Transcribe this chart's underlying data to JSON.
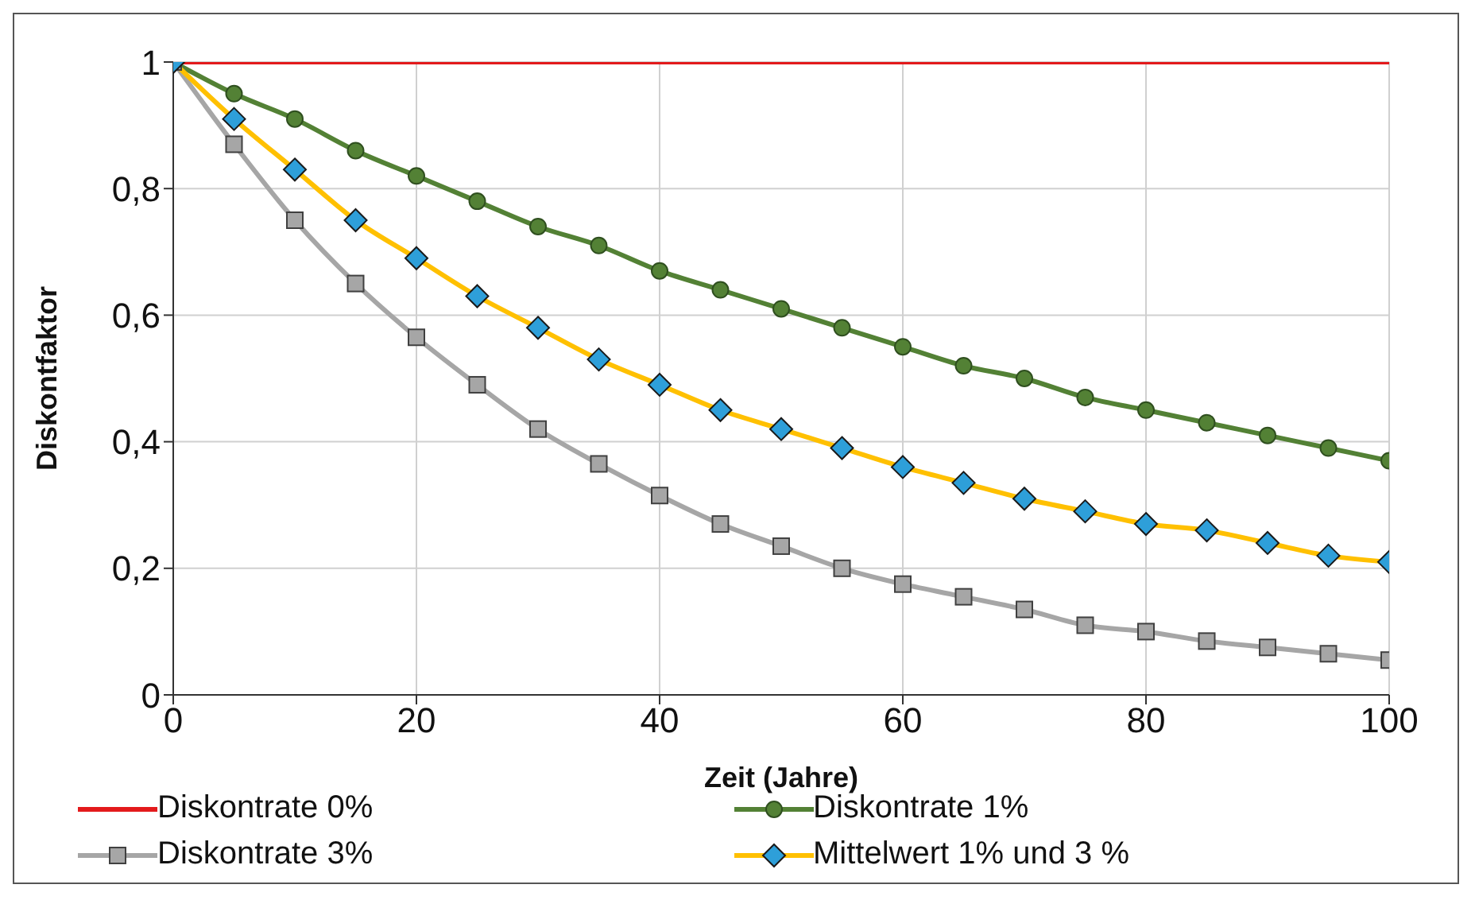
{
  "chart_data": {
    "type": "line",
    "xlabel": "Zeit (Jahre)",
    "ylabel": "Diskontfaktor",
    "x": [
      0,
      5,
      10,
      15,
      20,
      25,
      30,
      35,
      40,
      45,
      50,
      55,
      60,
      65,
      70,
      75,
      80,
      85,
      90,
      95,
      100
    ],
    "xlim": [
      0,
      100
    ],
    "xticks": [
      0,
      20,
      40,
      60,
      80,
      100
    ],
    "ylim": [
      0,
      1
    ],
    "yticks": [
      0,
      {
        "value": 0.2,
        "label": "0,2"
      },
      {
        "value": 0.4,
        "label": "0,4"
      },
      {
        "value": 0.6,
        "label": "0,6"
      },
      {
        "value": 0.8,
        "label": "0,8"
      },
      1
    ],
    "grid": true,
    "legend": "bottom",
    "line_style": "solid",
    "series": [
      {
        "name": "Diskontrate 0%",
        "color": "#e31a1c",
        "marker": "none",
        "values": [
          1,
          1,
          1,
          1,
          1,
          1,
          1,
          1,
          1,
          1,
          1,
          1,
          1,
          1,
          1,
          1,
          1,
          1,
          1,
          1,
          1
        ]
      },
      {
        "name": "Diskontrate 1%",
        "color": "#538135",
        "marker": "circle",
        "values": [
          1,
          0.95,
          0.91,
          0.86,
          0.82,
          0.78,
          0.74,
          0.71,
          0.67,
          0.64,
          0.61,
          0.58,
          0.55,
          0.52,
          0.5,
          0.47,
          0.45,
          0.43,
          0.41,
          0.39,
          0.37
        ]
      },
      {
        "name": "Diskontrate 3%",
        "color": "#a6a6a6",
        "marker": "square",
        "values": [
          1,
          0.87,
          0.75,
          0.65,
          0.565,
          0.49,
          0.42,
          0.365,
          0.315,
          0.27,
          0.235,
          0.2,
          0.175,
          0.155,
          0.135,
          0.11,
          0.1,
          0.085,
          0.075,
          0.065,
          0.055
        ]
      },
      {
        "name": "Mittelwert 1% und 3 %",
        "color": "#ffc000",
        "marker": "diamond",
        "values": [
          1,
          0.91,
          0.83,
          0.75,
          0.69,
          0.63,
          0.58,
          0.53,
          0.49,
          0.45,
          0.42,
          0.39,
          0.36,
          0.335,
          0.31,
          0.29,
          0.27,
          0.26,
          0.24,
          0.22,
          0.21
        ]
      }
    ]
  }
}
